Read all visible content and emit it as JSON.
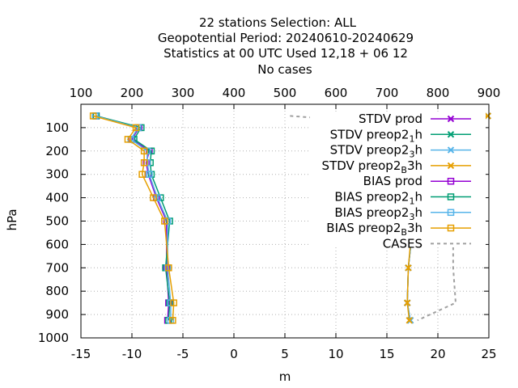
{
  "chart_data": {
    "type": "line",
    "title_lines": [
      "22 stations Selection: ALL",
      "Geopotential  Period: 20240610-20240629",
      "Statistics at 00 UTC  Used  12,18 + 06 12",
      "No cases"
    ],
    "xlabel": "m",
    "ylabel": "hPa",
    "x_bottom": {
      "min": -15,
      "max": 25,
      "ticks": [
        "-15",
        "-10",
        "-5",
        "0",
        "5",
        "10",
        "15",
        "20",
        "25"
      ]
    },
    "x_top": {
      "min": 100,
      "max": 900,
      "ticks": [
        "100",
        "200",
        "300",
        "400",
        "500",
        "600",
        "700",
        "800",
        "900"
      ]
    },
    "y": {
      "min": 0,
      "max": 1000,
      "reversed": true,
      "ticks": [
        "100",
        "200",
        "300",
        "400",
        "500",
        "600",
        "700",
        "800",
        "900",
        "1000"
      ]
    },
    "grid": true,
    "legend_position": "top-right",
    "levels": [
      50,
      100,
      150,
      200,
      250,
      300,
      400,
      500,
      700,
      850,
      925
    ],
    "series": [
      {
        "name": "STDV prod",
        "color": "#9400d3",
        "marker": "x",
        "axis": "bottom",
        "values": [
          24.9,
          21.3,
          19.6,
          18.6,
          18.1,
          17.9,
          17.9,
          17.6,
          17.1,
          17.0,
          17.3
        ]
      },
      {
        "name": "STDV preop2_1h",
        "color": "#009e73",
        "marker": "x",
        "axis": "bottom",
        "values": [
          24.9,
          21.3,
          19.6,
          18.6,
          18.1,
          17.9,
          17.9,
          17.6,
          17.1,
          17.0,
          17.3
        ]
      },
      {
        "name": "STDV preop2_3h",
        "color": "#56b4e9",
        "marker": "x",
        "axis": "bottom",
        "values": [
          24.9,
          21.2,
          19.5,
          18.5,
          18.0,
          17.8,
          17.9,
          17.6,
          17.1,
          17.0,
          17.3
        ]
      },
      {
        "name": "STDV preop2_B3h",
        "color": "#e69f00",
        "marker": "x",
        "axis": "bottom",
        "values": [
          24.9,
          21.1,
          19.4,
          18.4,
          18.0,
          17.8,
          17.8,
          17.5,
          17.1,
          17.0,
          17.2
        ]
      },
      {
        "name": "BIAS prod",
        "color": "#9400d3",
        "marker": "square",
        "axis": "bottom",
        "values": [
          -13.5,
          -9.3,
          -10.0,
          -8.3,
          -8.6,
          -8.4,
          -7.6,
          -6.6,
          -6.6,
          -6.4,
          -6.5
        ]
      },
      {
        "name": "BIAS preop2_1h",
        "color": "#009e73",
        "marker": "square",
        "axis": "bottom",
        "values": [
          -13.5,
          -9.1,
          -9.8,
          -8.1,
          -8.2,
          -8.1,
          -7.2,
          -6.3,
          -6.7,
          -6.3,
          -6.4
        ]
      },
      {
        "name": "BIAS preop2_3h",
        "color": "#56b4e9",
        "marker": "square",
        "axis": "bottom",
        "values": [
          -13.6,
          -9.4,
          -10.1,
          -8.5,
          -8.5,
          -8.3,
          -7.5,
          -6.5,
          -6.5,
          -6.2,
          -6.2
        ]
      },
      {
        "name": "BIAS preop2_B3h",
        "color": "#e69f00",
        "marker": "square",
        "axis": "bottom",
        "values": [
          -13.8,
          -9.6,
          -10.4,
          -8.8,
          -8.8,
          -9.0,
          -7.9,
          -6.8,
          -6.4,
          -5.9,
          -6.0
        ]
      },
      {
        "name": "CASES",
        "color": "#a0a0a0",
        "marker": "none",
        "dashed": true,
        "axis": "top",
        "levels": [
          50,
          100,
          200,
          300,
          400,
          500,
          700,
          850,
          925
        ],
        "values": [
          510,
          820,
          830,
          830,
          830,
          830,
          830,
          835,
          760
        ]
      }
    ],
    "legend_entries": [
      {
        "base": "STDV prod",
        "sub": "",
        "tail": ""
      },
      {
        "base": "STDV preop2",
        "sub": "1",
        "tail": "h"
      },
      {
        "base": "STDV preop2",
        "sub": "3",
        "tail": "h"
      },
      {
        "base": "STDV preop2",
        "sub": "B",
        "tail": "3h"
      },
      {
        "base": "BIAS prod",
        "sub": "",
        "tail": ""
      },
      {
        "base": "BIAS preop2",
        "sub": "1",
        "tail": "h"
      },
      {
        "base": "BIAS preop2",
        "sub": "3",
        "tail": "h"
      },
      {
        "base": "BIAS preop2",
        "sub": "B",
        "tail": "3h"
      },
      {
        "base": "CASES",
        "sub": "",
        "tail": ""
      }
    ]
  }
}
